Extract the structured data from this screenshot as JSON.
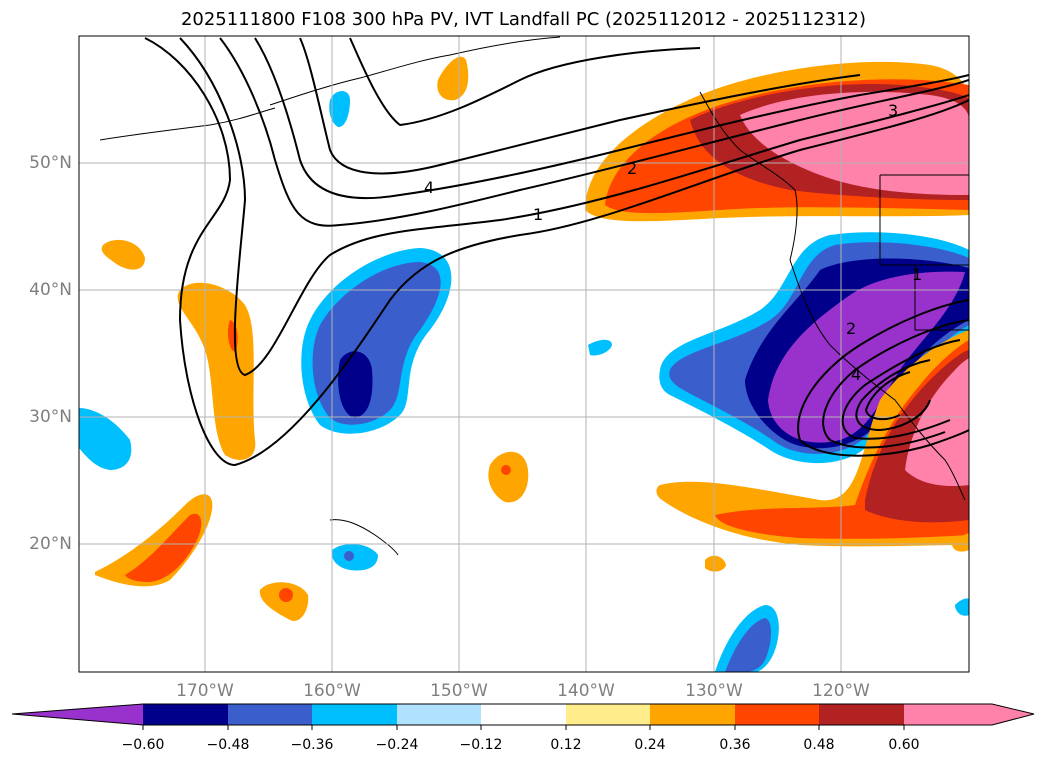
{
  "title": "2025111800 F108 300 hPa PV, IVT Landfall PC (2025112012 - 2025112312)",
  "lat_labels": [
    "50°N",
    "40°N",
    "30°N",
    "20°N"
  ],
  "lon_labels": [
    "170°W",
    "160°W",
    "150°W",
    "140°W",
    "130°W",
    "120°W"
  ],
  "contour_labels": [
    "4",
    "2",
    "1",
    "3",
    "1",
    "2",
    "4"
  ],
  "colorbar": {
    "ticks": [
      "−0.60",
      "−0.48",
      "−0.36",
      "−0.24",
      "−0.12",
      "0.12",
      "0.24",
      "0.36",
      "0.48",
      "0.60"
    ],
    "colors": [
      "#9932cc",
      "#00008b",
      "#3a5fcd",
      "#00bfff",
      "#b0e2ff",
      "#ffffff",
      "#ffec8b",
      "#ffa500",
      "#ff4500",
      "#b22222",
      "#ff82ab"
    ]
  },
  "colors": {
    "purple": "#9932cc",
    "navy": "#00008b",
    "royalblue": "#3a5fcd",
    "deepskyblue": "#00bfff",
    "lightblue": "#b0e2ff",
    "orange": "#ffa500",
    "orangered": "#ff4500",
    "firebrick": "#b22222",
    "pink": "#ff82ab"
  }
}
